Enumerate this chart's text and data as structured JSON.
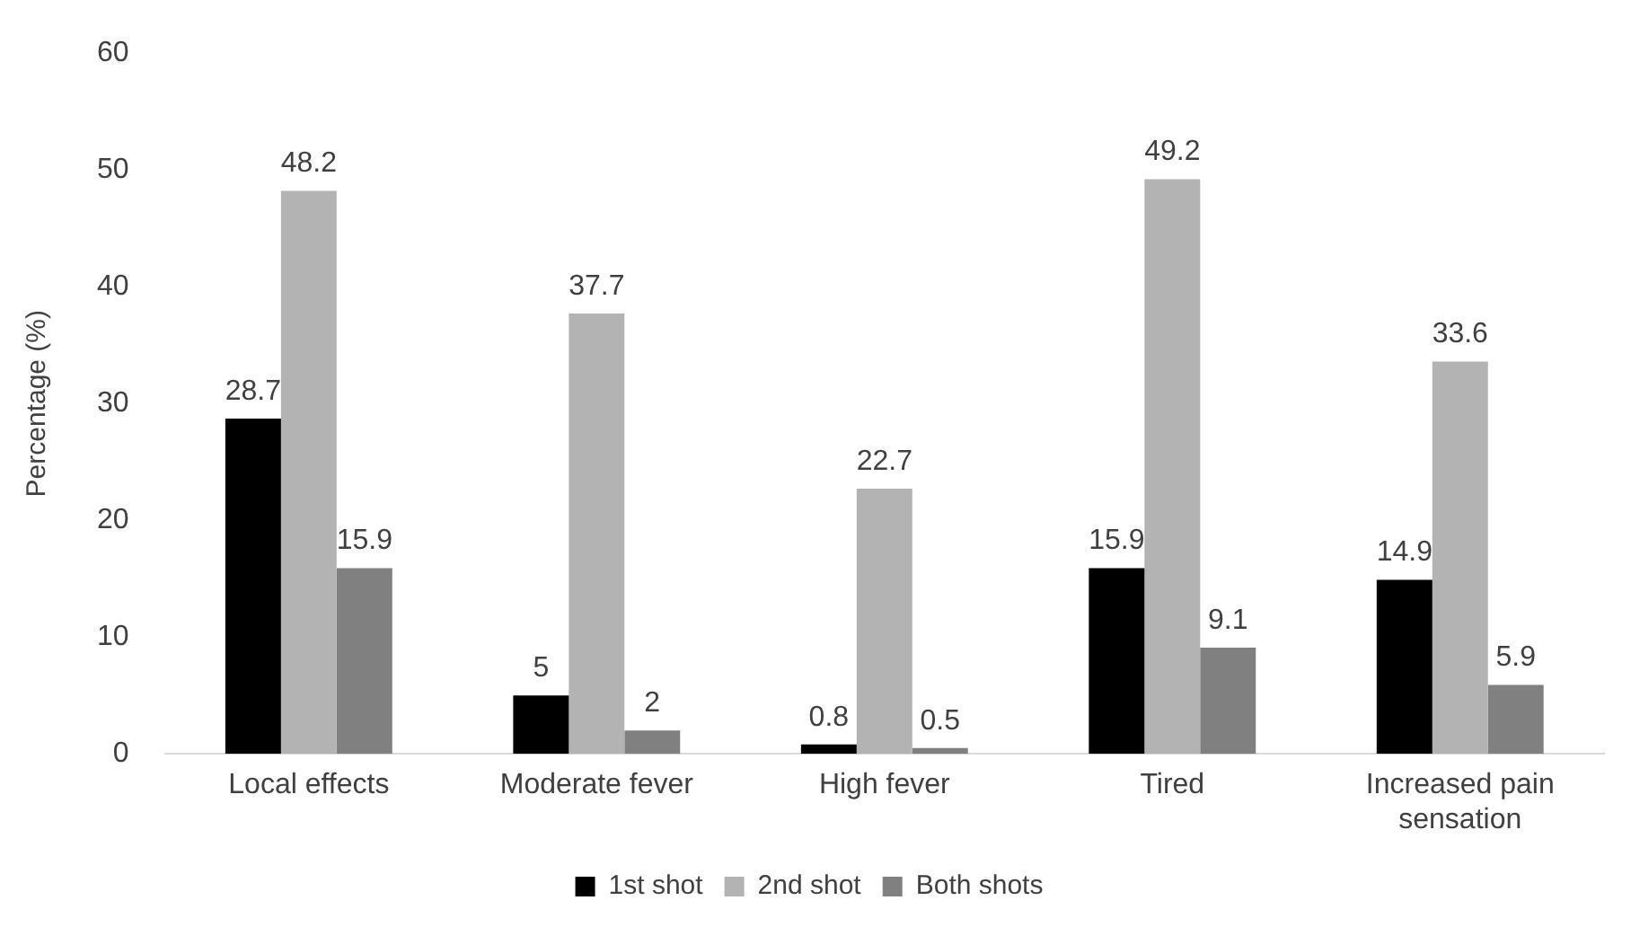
{
  "chart_data": {
    "type": "bar",
    "ylabel": "Percentage (%)",
    "categories": [
      "Local effects",
      "Moderate fever",
      "High fever",
      "Tired",
      "Increased pain sensation"
    ],
    "series": [
      {
        "name": "1st shot",
        "color": "#000000",
        "values": [
          28.7,
          5,
          0.8,
          15.9,
          14.9
        ]
      },
      {
        "name": "2nd shot",
        "color": "#b3b3b3",
        "values": [
          48.2,
          37.7,
          22.7,
          49.2,
          33.6
        ]
      },
      {
        "name": "Both shots",
        "color": "#808080",
        "values": [
          15.9,
          2,
          0.5,
          9.1,
          5.9
        ]
      }
    ],
    "ylim": [
      0,
      60
    ],
    "yticks": [
      0,
      10,
      20,
      30,
      40,
      50,
      60
    ],
    "grid": false,
    "legend": "bottom",
    "data_labels": true
  }
}
